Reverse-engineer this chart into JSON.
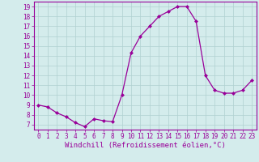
{
  "x": [
    0,
    1,
    2,
    3,
    4,
    5,
    6,
    7,
    8,
    9,
    10,
    11,
    12,
    13,
    14,
    15,
    16,
    17,
    18,
    19,
    20,
    21,
    22,
    23
  ],
  "y": [
    9.0,
    8.8,
    8.2,
    7.8,
    7.2,
    6.8,
    7.6,
    7.4,
    7.3,
    10.0,
    14.3,
    16.0,
    17.0,
    18.0,
    18.5,
    19.0,
    19.0,
    17.5,
    12.0,
    10.5,
    10.2,
    10.2,
    10.5,
    11.5
  ],
  "line_color": "#990099",
  "marker": "D",
  "marker_size": 2.0,
  "xlabel": "Windchill (Refroidissement éolien,°C)",
  "xlim": [
    -0.5,
    23.5
  ],
  "ylim": [
    6.5,
    19.5
  ],
  "yticks": [
    7,
    8,
    9,
    10,
    11,
    12,
    13,
    14,
    15,
    16,
    17,
    18,
    19
  ],
  "xticks": [
    0,
    1,
    2,
    3,
    4,
    5,
    6,
    7,
    8,
    9,
    10,
    11,
    12,
    13,
    14,
    15,
    16,
    17,
    18,
    19,
    20,
    21,
    22,
    23
  ],
  "bg_color": "#d4ecec",
  "grid_color": "#b0d0d0",
  "spine_color": "#990099",
  "tick_color": "#990099",
  "label_color": "#990099",
  "xlabel_fontsize": 6.5,
  "tick_fontsize": 5.5,
  "linewidth": 0.9
}
